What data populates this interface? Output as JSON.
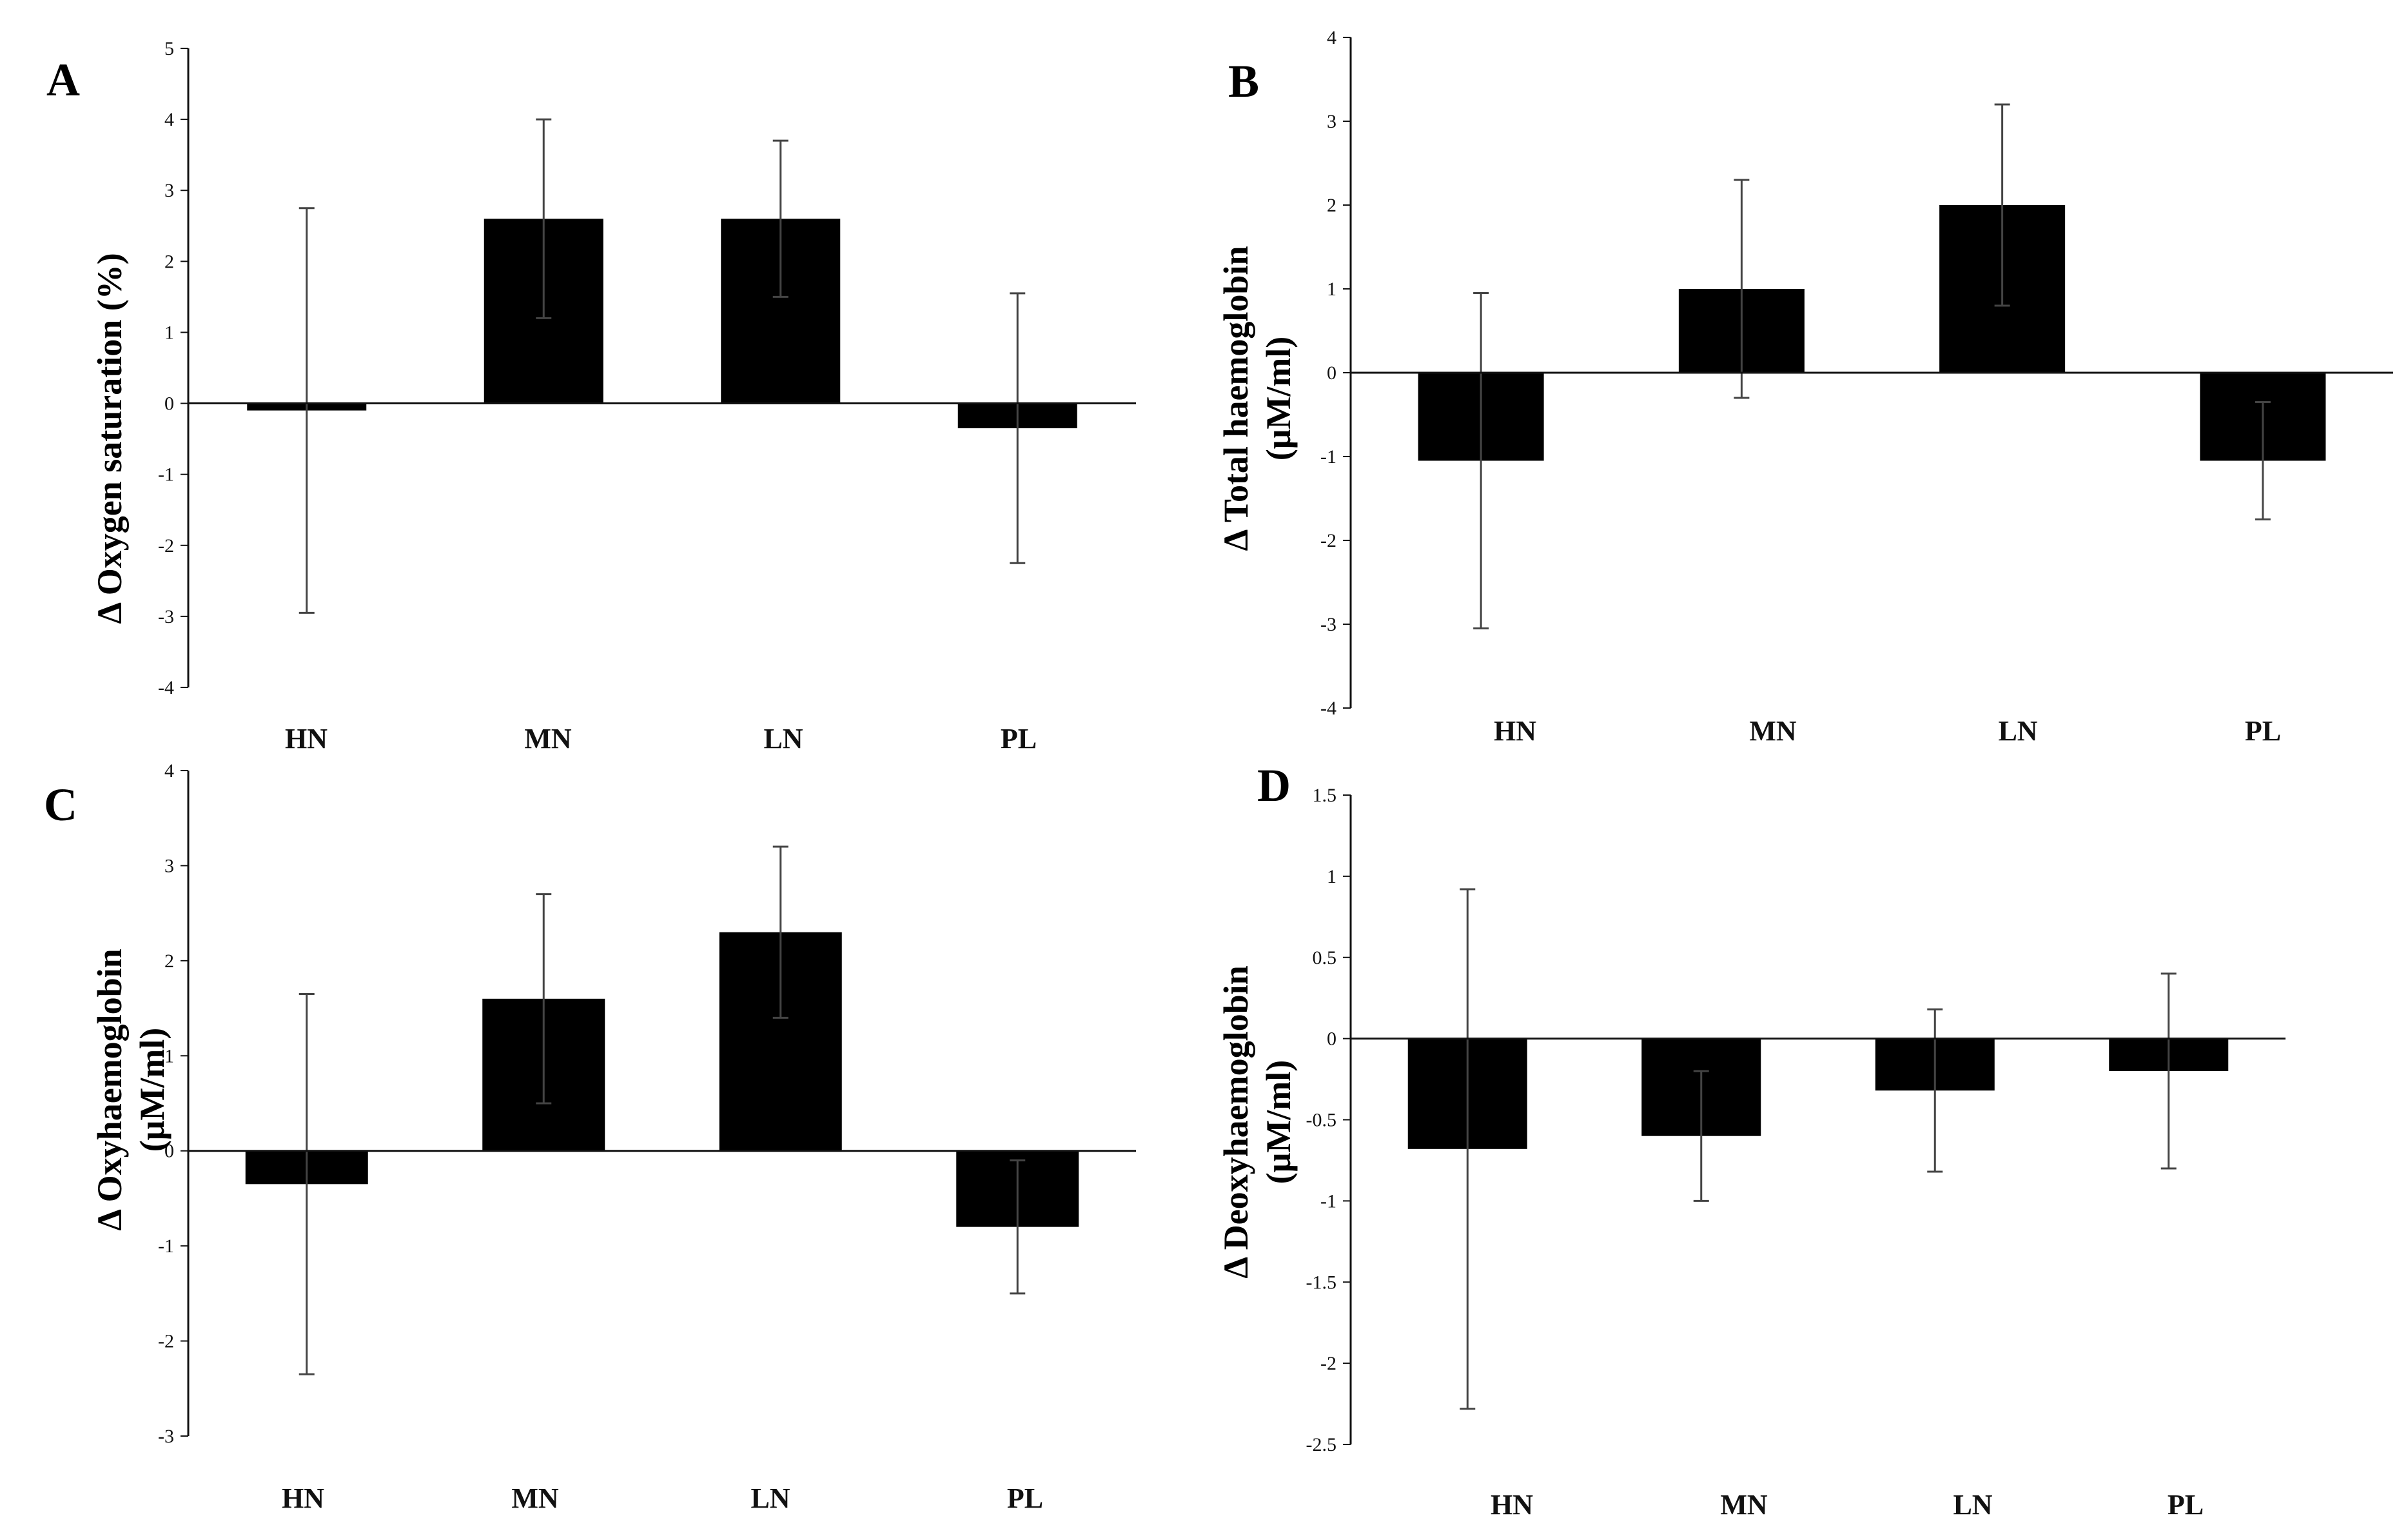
{
  "chart_data": [
    {
      "type": "bar",
      "panel": "A",
      "categories": [
        "HN",
        "MN",
        "LN",
        "PL"
      ],
      "values": [
        -0.1,
        2.6,
        2.6,
        -0.35
      ],
      "errors": [
        2.85,
        1.4,
        1.1,
        1.9
      ],
      "ylabel": [
        "Δ Oxygen saturation (%)"
      ],
      "ylim": [
        -4,
        5
      ],
      "yticks": [
        -4,
        -3,
        -2,
        -1,
        0,
        1,
        2,
        3,
        4,
        5
      ],
      "ytick_labels": [
        "-4",
        "-3",
        "-2",
        "-1",
        "0",
        "1",
        "2",
        "3",
        "4",
        "5"
      ],
      "grid": false
    },
    {
      "type": "bar",
      "panel": "B",
      "categories": [
        "HN",
        "MN",
        "LN",
        "PL"
      ],
      "values": [
        -1.05,
        1.0,
        2.0,
        -1.05
      ],
      "errors": [
        2.0,
        1.3,
        1.2,
        0.7
      ],
      "ylabel": [
        "Δ Total haemoglobin",
        "(μM/ml)"
      ],
      "ylim": [
        -4,
        4
      ],
      "yticks": [
        -4,
        -3,
        -2,
        -1,
        0,
        1,
        2,
        3,
        4
      ],
      "ytick_labels": [
        "-4",
        "-3",
        "-2",
        "-1",
        "0",
        "1",
        "2",
        "3",
        "4"
      ],
      "grid": false
    },
    {
      "type": "bar",
      "panel": "C",
      "categories": [
        "HN",
        "MN",
        "LN",
        "PL"
      ],
      "values": [
        -0.35,
        1.6,
        2.3,
        -0.8
      ],
      "errors": [
        2.0,
        1.1,
        0.9,
        0.7
      ],
      "ylabel": [
        "Δ Oxyhaemoglobin",
        "(μM/ml)"
      ],
      "ylim": [
        -3,
        4
      ],
      "yticks": [
        -3,
        -2,
        -1,
        0,
        1,
        2,
        3,
        4
      ],
      "ytick_labels": [
        "-3",
        "-2",
        "-1",
        "0",
        "1",
        "2",
        "3",
        "4"
      ],
      "grid": false
    },
    {
      "type": "bar",
      "panel": "D",
      "categories": [
        "HN",
        "MN",
        "LN",
        "PL"
      ],
      "values": [
        -0.68,
        -0.6,
        -0.32,
        -0.2
      ],
      "errors": [
        1.6,
        0.4,
        0.5,
        0.6
      ],
      "ylabel": [
        "Δ Deoxyhaemoglobin",
        "(μM/ml)"
      ],
      "ylim": [
        -2.5,
        1.5
      ],
      "yticks": [
        -2.5,
        -2,
        -1.5,
        -1,
        -0.5,
        0,
        0.5,
        1,
        1.5
      ],
      "ytick_labels": [
        "-2.5",
        "-2",
        "-1.5",
        "-1",
        "-0.5",
        "0",
        "0.5",
        "1",
        "1.5"
      ],
      "grid": false
    }
  ],
  "colors": {
    "bar": "#000000",
    "axis": "#111111",
    "error": "#444444"
  }
}
